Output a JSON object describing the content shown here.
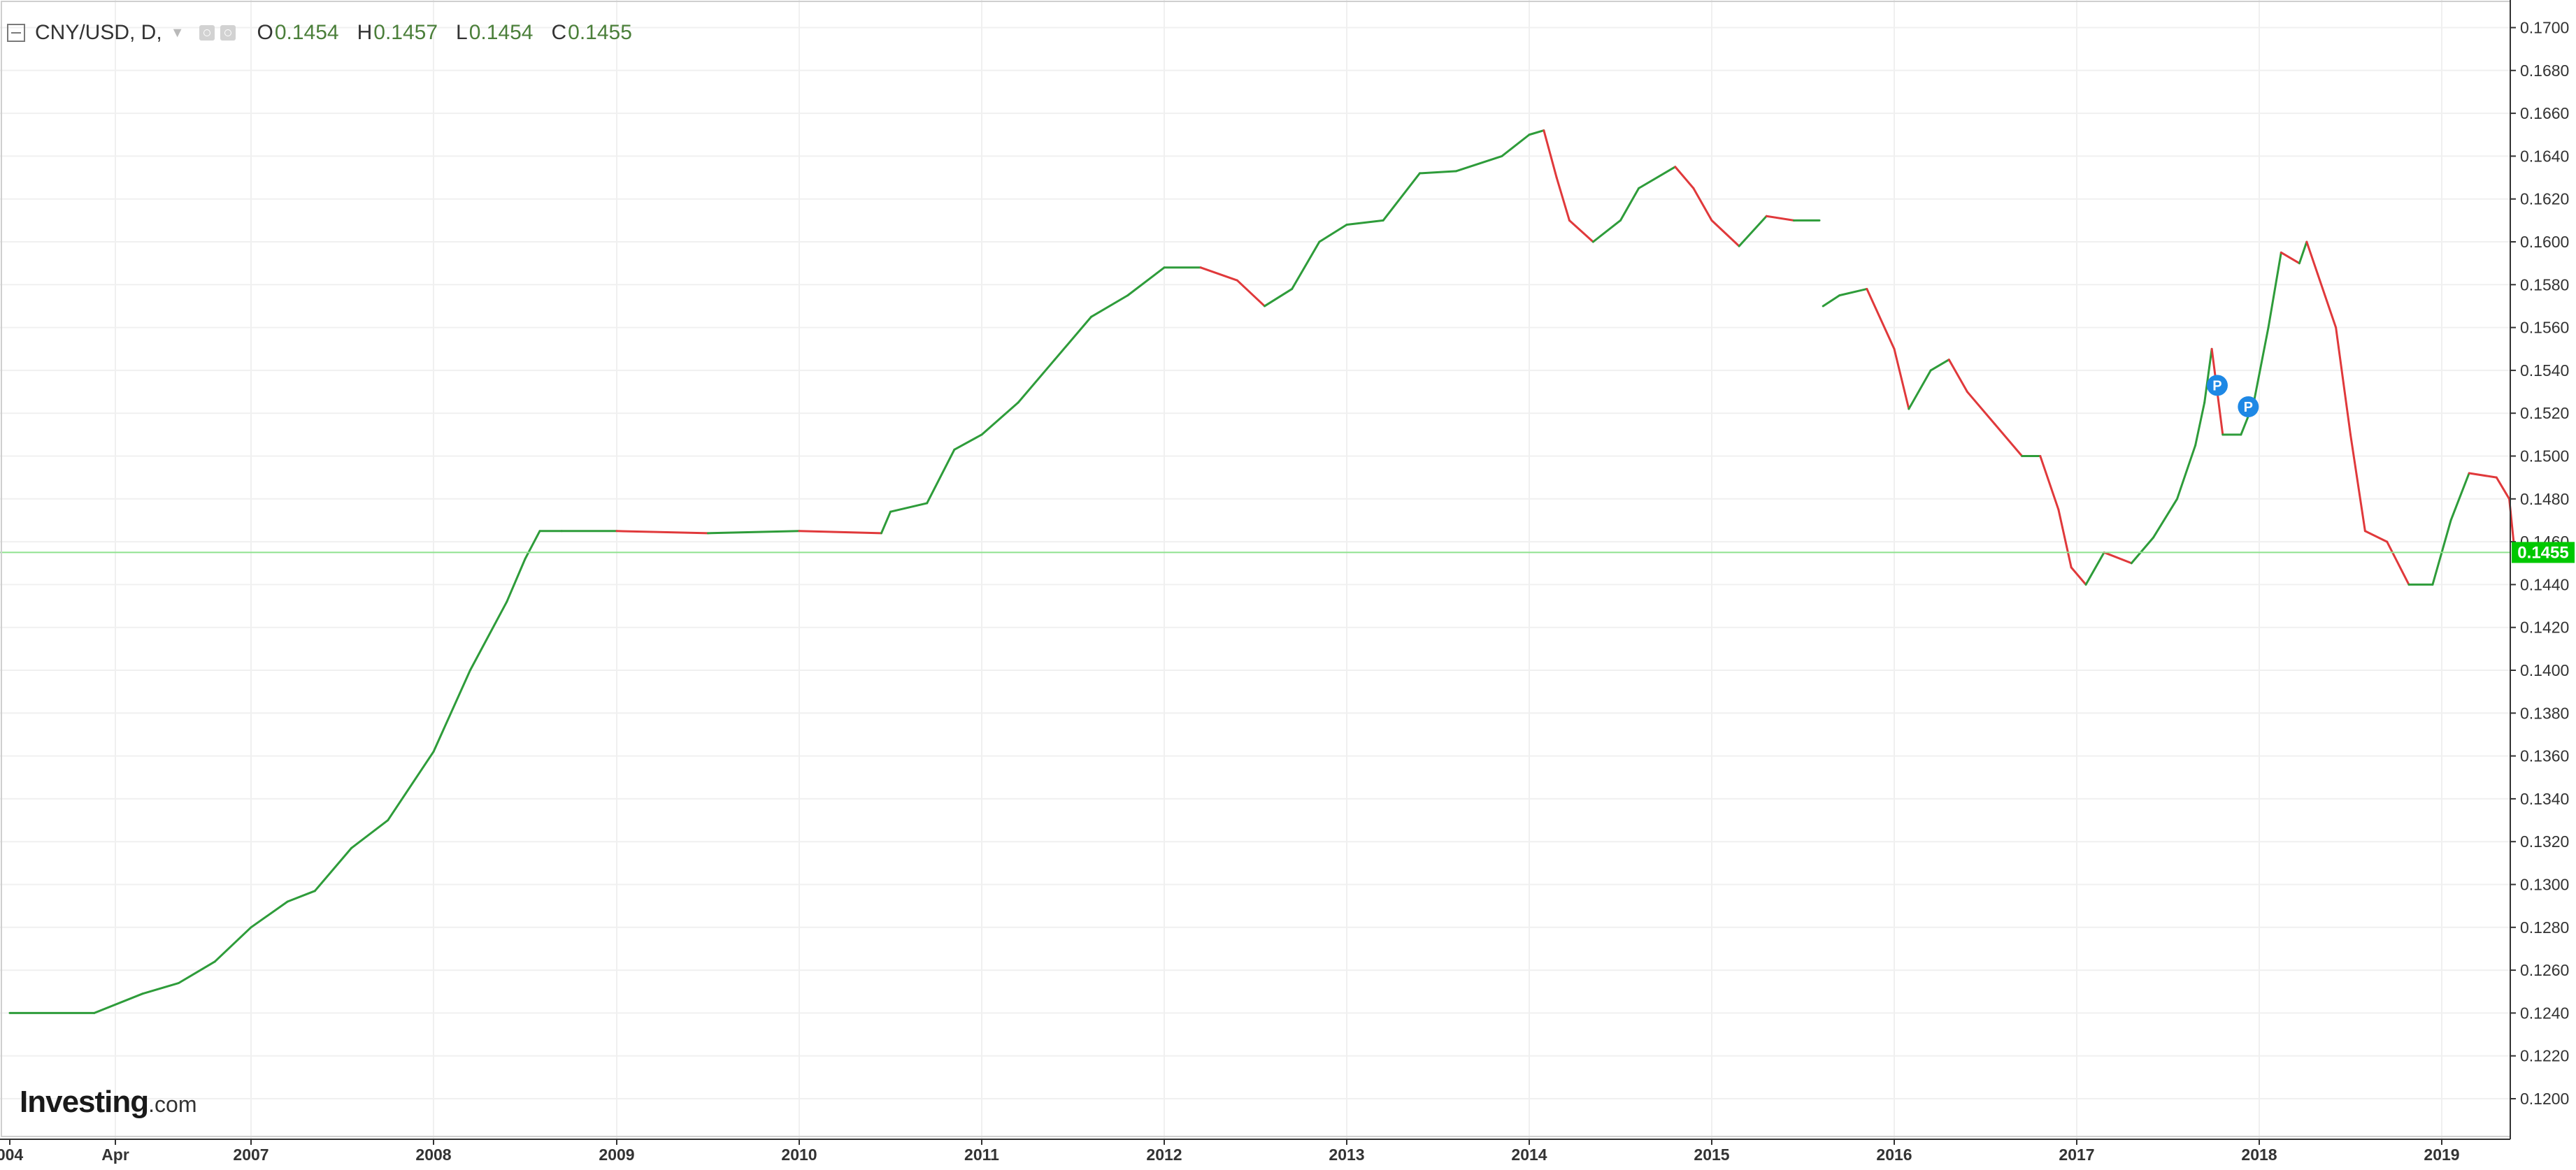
{
  "legend": {
    "symbol": "CNY/USD, D,",
    "open_label": "O",
    "open": "0.1454",
    "high_label": "H",
    "high": "0.1457",
    "low_label": "L",
    "low": "0.1454",
    "close_label": "C",
    "close": "0.1455"
  },
  "logo": {
    "brand": "Investing",
    "suffix": ".com"
  },
  "colors": {
    "up": "#2e9c3a",
    "down": "#e0393b",
    "last_price": "#00c800",
    "marker": "#1e88e5",
    "grid": "#f0f0f0",
    "axis": "#333333"
  },
  "chart_data": {
    "type": "line",
    "title": "CNY/USD, D,",
    "xlabel": "",
    "ylabel": "",
    "ylim": [
      0.118,
      0.171
    ],
    "x_ticks": [
      {
        "label": "004",
        "t": 2006.0
      },
      {
        "label": "Apr",
        "t": 2006.25
      },
      {
        "label": "2007",
        "t": 2007.0
      },
      {
        "label": "2008",
        "t": 2008.0
      },
      {
        "label": "2009",
        "t": 2009.0
      },
      {
        "label": "2010",
        "t": 2010.0
      },
      {
        "label": "2011",
        "t": 2011.0
      },
      {
        "label": "2012",
        "t": 2012.0
      },
      {
        "label": "2013",
        "t": 2013.0
      },
      {
        "label": "2014",
        "t": 2014.0
      },
      {
        "label": "2015",
        "t": 2015.0
      },
      {
        "label": "2016",
        "t": 2016.0
      },
      {
        "label": "2017",
        "t": 2017.0
      },
      {
        "label": "2018",
        "t": 2018.0
      },
      {
        "label": "2019",
        "t": 2019.0
      }
    ],
    "y_ticks": [
      "0.1200",
      "0.1220",
      "0.1240",
      "0.1260",
      "0.1280",
      "0.1300",
      "0.1320",
      "0.1340",
      "0.1360",
      "0.1380",
      "0.1400",
      "0.1420",
      "0.1440",
      "0.1460",
      "0.1480",
      "0.1500",
      "0.1520",
      "0.1540",
      "0.1560",
      "0.1580",
      "0.1600",
      "0.1620",
      "0.1640",
      "0.1660",
      "0.1680",
      "0.1700"
    ],
    "last_price": "0.1455",
    "markers": [
      {
        "label": "P",
        "t": 2017.77,
        "y": 0.1533
      },
      {
        "label": "P",
        "t": 2017.94,
        "y": 0.1523
      }
    ],
    "series": [
      {
        "points": [
          [
            2006.0,
            0.124
          ],
          [
            2006.2,
            0.124
          ],
          [
            2006.4,
            0.1249
          ],
          [
            2006.6,
            0.1254
          ],
          [
            2006.8,
            0.1264
          ],
          [
            2007.0,
            0.128
          ],
          [
            2007.2,
            0.1292
          ],
          [
            2007.35,
            0.1297
          ],
          [
            2007.55,
            0.1317
          ],
          [
            2007.75,
            0.133
          ],
          [
            2008.0,
            0.1362
          ],
          [
            2008.2,
            0.14
          ],
          [
            2008.4,
            0.1432
          ],
          [
            2008.5,
            0.1452
          ],
          [
            2008.58,
            0.1465
          ],
          [
            2008.7,
            0.1465
          ],
          [
            2009.0,
            0.1465
          ],
          [
            2009.5,
            0.1464
          ],
          [
            2010.0,
            0.1465
          ],
          [
            2010.45,
            0.1464
          ],
          [
            2010.5,
            0.1474
          ],
          [
            2010.7,
            0.1478
          ],
          [
            2010.85,
            0.1503
          ],
          [
            2011.0,
            0.151
          ],
          [
            2011.2,
            0.1525
          ],
          [
            2011.4,
            0.1545
          ],
          [
            2011.6,
            0.1565
          ],
          [
            2011.8,
            0.1575
          ],
          [
            2012.0,
            0.1588
          ],
          [
            2012.2,
            0.1588
          ],
          [
            2012.4,
            0.1582
          ],
          [
            2012.55,
            0.157
          ],
          [
            2012.7,
            0.1578
          ],
          [
            2012.85,
            0.16
          ],
          [
            2013.0,
            0.1608
          ],
          [
            2013.2,
            0.161
          ],
          [
            2013.4,
            0.1632
          ],
          [
            2013.6,
            0.1633
          ],
          [
            2013.85,
            0.164
          ],
          [
            2014.0,
            0.165
          ],
          [
            2014.08,
            0.1652
          ],
          [
            2014.15,
            0.163
          ],
          [
            2014.22,
            0.161
          ],
          [
            2014.35,
            0.16
          ],
          [
            2014.5,
            0.161
          ],
          [
            2014.6,
            0.1625
          ],
          [
            2014.8,
            0.1635
          ],
          [
            2014.9,
            0.1625
          ],
          [
            2015.0,
            0.161
          ],
          [
            2015.15,
            0.1598
          ],
          [
            2015.3,
            0.1612
          ],
          [
            2015.45,
            0.161
          ],
          [
            2015.59,
            0.161
          ]
        ]
      },
      {
        "points": [
          [
            2015.61,
            0.157
          ],
          [
            2015.7,
            0.1575
          ],
          [
            2015.85,
            0.1578
          ],
          [
            2016.0,
            0.155
          ],
          [
            2016.08,
            0.1522
          ],
          [
            2016.2,
            0.154
          ],
          [
            2016.3,
            0.1545
          ],
          [
            2016.4,
            0.153
          ],
          [
            2016.55,
            0.1515
          ],
          [
            2016.7,
            0.15
          ],
          [
            2016.8,
            0.15
          ],
          [
            2016.9,
            0.1475
          ],
          [
            2016.97,
            0.1448
          ],
          [
            2017.05,
            0.144
          ],
          [
            2017.15,
            0.1455
          ],
          [
            2017.3,
            0.145
          ],
          [
            2017.42,
            0.1462
          ],
          [
            2017.55,
            0.148
          ],
          [
            2017.65,
            0.1505
          ],
          [
            2017.7,
            0.1525
          ],
          [
            2017.74,
            0.155
          ],
          [
            2017.8,
            0.151
          ],
          [
            2017.9,
            0.151
          ],
          [
            2017.97,
            0.1525
          ],
          [
            2018.05,
            0.156
          ],
          [
            2018.12,
            0.1595
          ],
          [
            2018.22,
            0.159
          ],
          [
            2018.26,
            0.16
          ],
          [
            2018.32,
            0.1585
          ],
          [
            2018.42,
            0.156
          ],
          [
            2018.5,
            0.151
          ],
          [
            2018.58,
            0.1465
          ],
          [
            2018.7,
            0.146
          ],
          [
            2018.82,
            0.144
          ],
          [
            2018.95,
            0.144
          ],
          [
            2019.05,
            0.147
          ],
          [
            2019.15,
            0.1492
          ],
          [
            2019.3,
            0.149
          ],
          [
            2019.37,
            0.148
          ],
          [
            2019.4,
            0.1455
          ]
        ]
      }
    ]
  }
}
